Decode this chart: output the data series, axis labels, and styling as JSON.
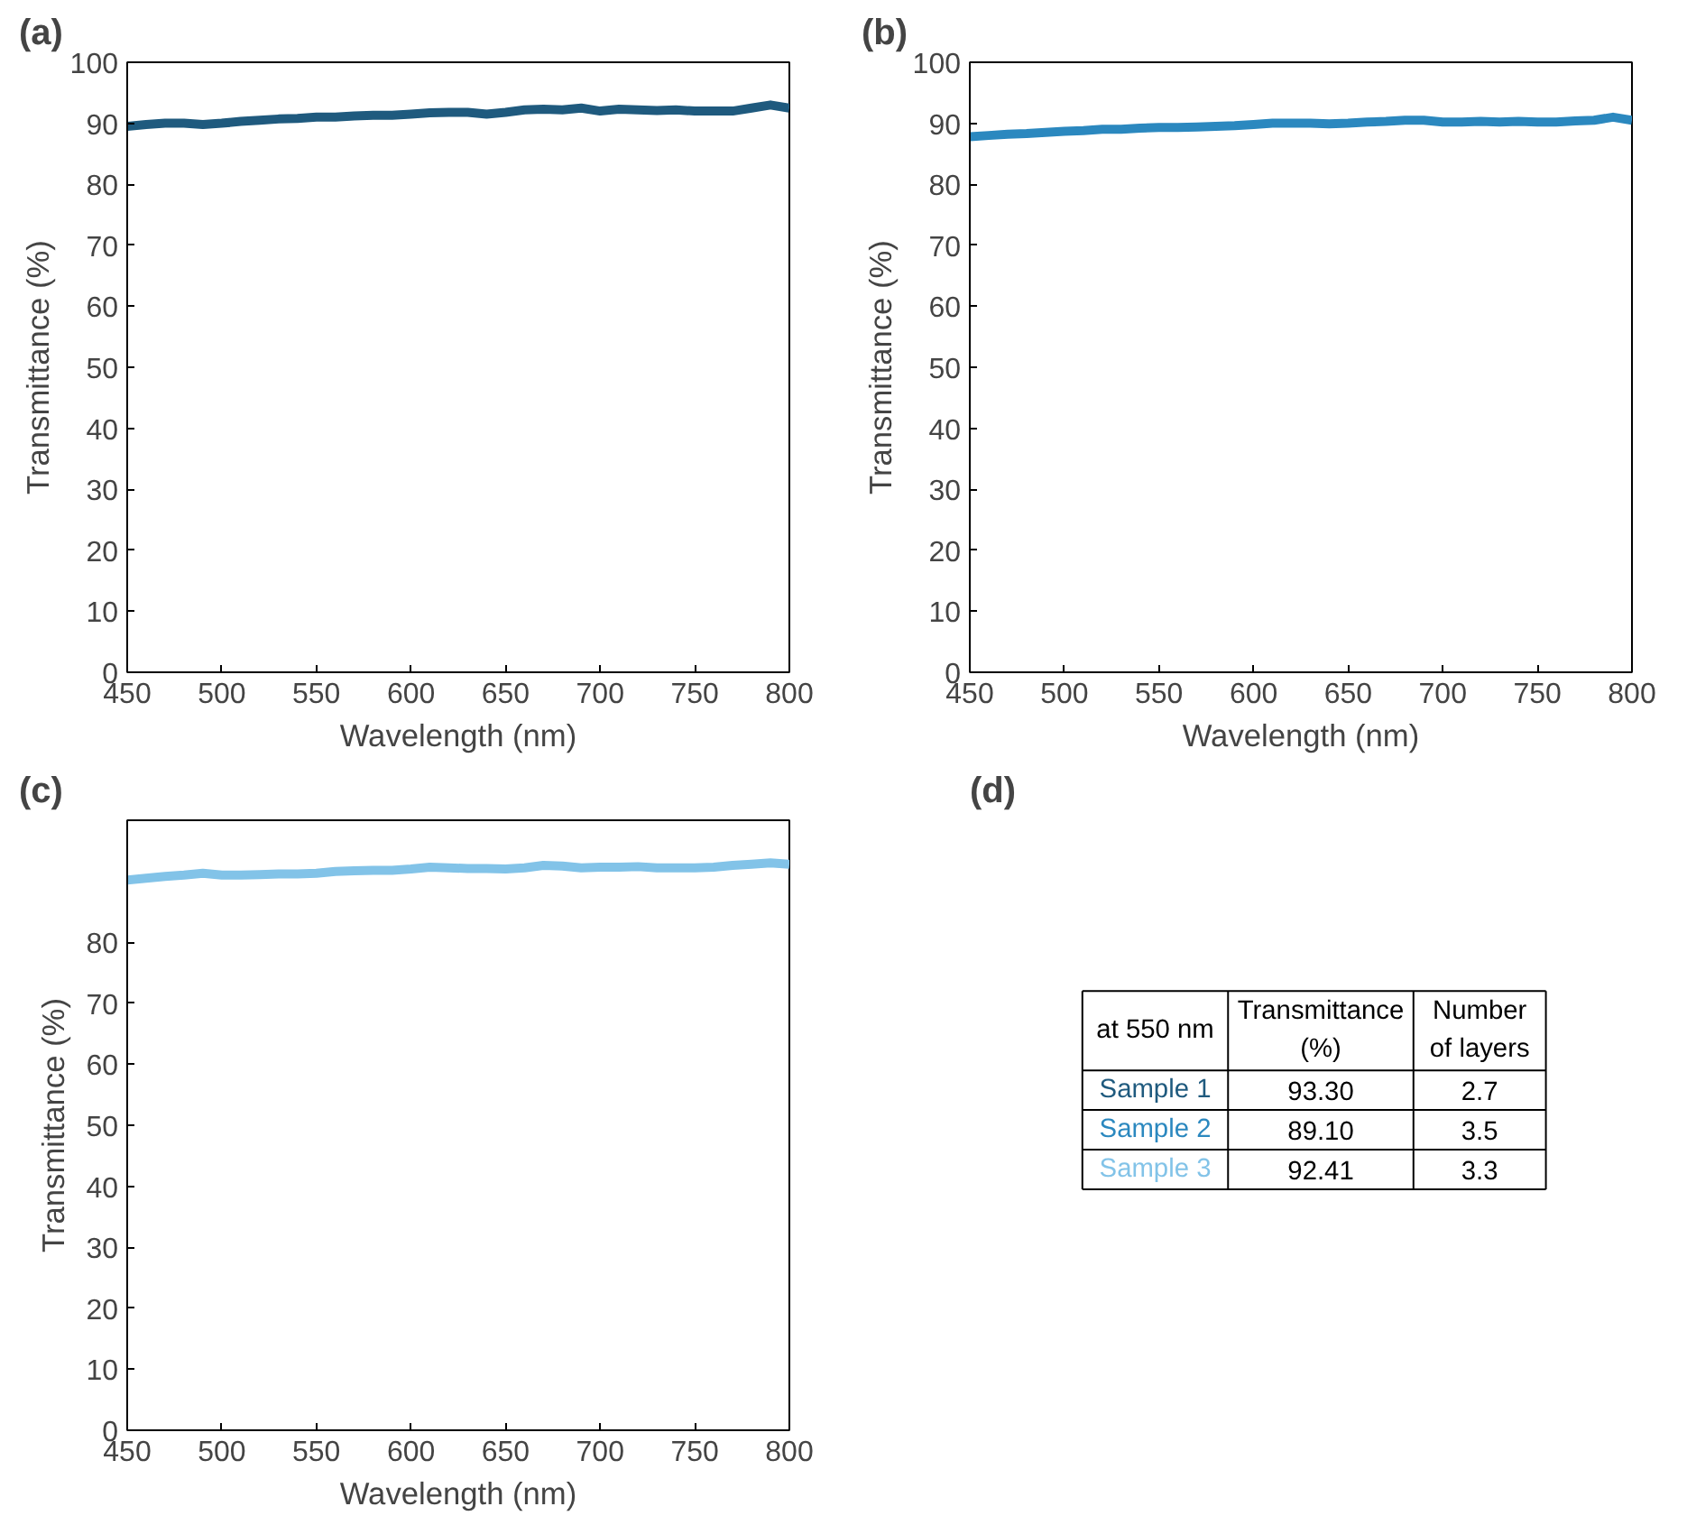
{
  "chart_data": [
    {
      "type": "line",
      "title": "(a)",
      "xlabel": "Wavelength (nm)",
      "ylabel": "Transmittance (%)",
      "xlim": [
        450,
        800
      ],
      "ylim": [
        0,
        100
      ],
      "xticks": [
        450,
        500,
        550,
        600,
        650,
        700,
        750,
        800
      ],
      "yticks": [
        0,
        10,
        20,
        30,
        40,
        50,
        60,
        70,
        80,
        90,
        100
      ],
      "grid": false,
      "x": [
        450,
        460,
        470,
        480,
        490,
        500,
        510,
        520,
        530,
        540,
        550,
        560,
        570,
        580,
        590,
        600,
        610,
        620,
        630,
        640,
        650,
        660,
        670,
        680,
        690,
        700,
        710,
        720,
        730,
        740,
        750,
        760,
        770,
        780,
        790,
        800
      ],
      "series": [
        {
          "color": "#1f5a7e",
          "values": [
            89.5,
            89.8,
            90,
            90,
            89.8,
            90,
            90.3,
            90.5,
            90.7,
            90.8,
            91,
            91,
            91.2,
            91.3,
            91.3,
            91.5,
            91.7,
            91.8,
            91.8,
            91.5,
            91.8,
            92.2,
            92.3,
            92.2,
            92.5,
            92,
            92.3,
            92.2,
            92.1,
            92.2,
            92,
            92,
            92,
            92.5,
            93,
            92.5
          ]
        }
      ]
    },
    {
      "type": "line",
      "title": "(b)",
      "xlabel": "Wavelength (nm)",
      "ylabel": "Transmittance (%)",
      "xlim": [
        450,
        800
      ],
      "ylim": [
        0,
        100
      ],
      "xticks": [
        450,
        500,
        550,
        600,
        650,
        700,
        750,
        800
      ],
      "yticks": [
        0,
        10,
        20,
        30,
        40,
        50,
        60,
        70,
        80,
        90,
        100
      ],
      "grid": false,
      "x": [
        450,
        460,
        470,
        480,
        490,
        500,
        510,
        520,
        530,
        540,
        550,
        560,
        570,
        580,
        590,
        600,
        610,
        620,
        630,
        640,
        650,
        660,
        670,
        680,
        690,
        700,
        710,
        720,
        730,
        740,
        750,
        760,
        770,
        780,
        790,
        800
      ],
      "series": [
        {
          "color": "#2b88bf",
          "values": [
            87.8,
            88,
            88.2,
            88.3,
            88.5,
            88.7,
            88.8,
            89,
            89,
            89.2,
            89.3,
            89.3,
            89.4,
            89.5,
            89.6,
            89.8,
            90,
            90,
            90,
            89.9,
            90,
            90.2,
            90.3,
            90.5,
            90.5,
            90.2,
            90.2,
            90.3,
            90.2,
            90.3,
            90.2,
            90.2,
            90.4,
            90.5,
            91,
            90.5
          ]
        }
      ]
    },
    {
      "type": "line",
      "title": "(c)",
      "xlabel": "Wavelength (nm)",
      "ylabel": "Transmittance (%)",
      "xlim": [
        450,
        800
      ],
      "ylim": [
        0,
        100
      ],
      "xticks": [
        450,
        500,
        550,
        600,
        650,
        700,
        750,
        800
      ],
      "yticks": [
        0,
        10,
        20,
        30,
        40,
        50,
        60,
        70,
        80
      ],
      "grid": false,
      "x": [
        450,
        460,
        470,
        480,
        490,
        500,
        510,
        520,
        530,
        540,
        550,
        560,
        570,
        580,
        590,
        600,
        610,
        620,
        630,
        640,
        650,
        660,
        670,
        680,
        690,
        700,
        710,
        720,
        730,
        740,
        750,
        760,
        770,
        780,
        790,
        800
      ],
      "series": [
        {
          "color": "#82c3e8",
          "values": [
            90.2,
            90.5,
            90.8,
            91,
            91.3,
            91,
            91,
            91.1,
            91.2,
            91.2,
            91.3,
            91.6,
            91.7,
            91.8,
            91.8,
            92,
            92.3,
            92.2,
            92.1,
            92.1,
            92,
            92.2,
            92.6,
            92.5,
            92.2,
            92.3,
            92.3,
            92.4,
            92.2,
            92.2,
            92.2,
            92.3,
            92.6,
            92.8,
            93,
            92.8
          ]
        }
      ]
    },
    {
      "type": "other",
      "title": "(d)",
      "annotations": [
        "at 550 nm"
      ],
      "categories": [
        "Transmittance\n(%)",
        "Number\nof layers"
      ],
      "y_categories": [
        "Sample 1",
        "Sample 2",
        "Sample 3"
      ],
      "colors": [
        "#1f5a7e",
        "#2b88bf",
        "#82c3e8"
      ],
      "cell_labels": [
        [
          "93.30",
          "2.7"
        ],
        [
          "89.10",
          "3.5"
        ],
        [
          "92.41",
          "3.3"
        ]
      ]
    }
  ]
}
